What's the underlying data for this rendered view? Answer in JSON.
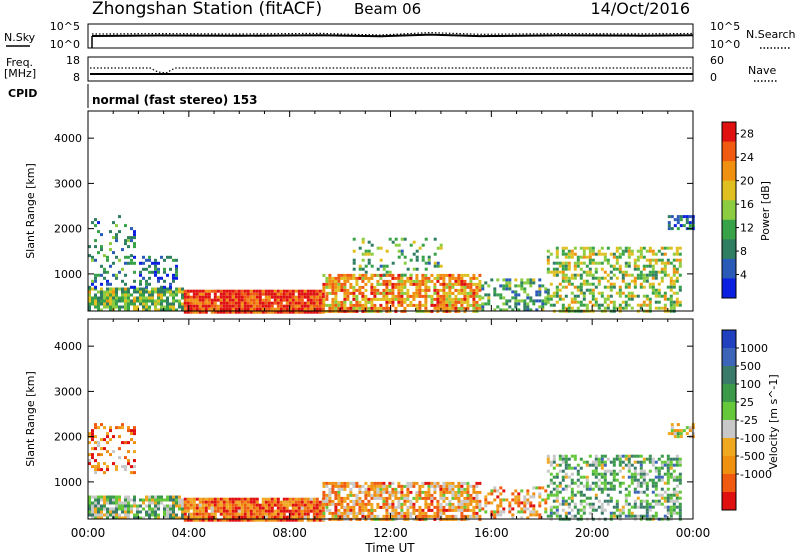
{
  "header": {
    "station": "Zhongshan Station (fitACF)",
    "beam": "Beam 06",
    "date": "14/Oct/2016"
  },
  "noise_panel": {
    "left_label": "N.Sky",
    "right_label": "N.Search",
    "left_ticks": [
      "10^5",
      "10^0"
    ],
    "right_ticks": [
      "10^5",
      "10^0"
    ]
  },
  "freq_panel": {
    "left_label_1": "Freq.",
    "left_label_2": "[MHz]",
    "left_ticks": [
      "18",
      "8"
    ],
    "right_label": "Nave",
    "right_ticks": [
      "60",
      "0"
    ]
  },
  "cpid": {
    "label": "CPID",
    "value": "normal (fast stereo) 153"
  },
  "colors": {
    "power": [
      "#0a1fe0",
      "#2a5ab8",
      "#2f7e62",
      "#38a248",
      "#8ccc40",
      "#e0c020",
      "#f09010",
      "#f05a10",
      "#e01010"
    ],
    "velocity": [
      "#e01010",
      "#f05a10",
      "#f09010",
      "#f0a820",
      "#c8c8c8",
      "#64c83a",
      "#3a9a4a",
      "#3a7a6a",
      "#3c64b8",
      "#2040c0"
    ]
  },
  "chart_data": [
    {
      "type": "heatmap",
      "title": "Power [dB]",
      "xlabel": "Time UT",
      "ylabel": "Slant Range [km]",
      "x_ticks": [
        "00:00",
        "04:00",
        "08:00",
        "12:00",
        "16:00",
        "20:00",
        "00:00"
      ],
      "y_ticks": [
        1000,
        2000,
        3000,
        4000
      ],
      "ylim": [
        180,
        4600
      ],
      "colorbar_label": "Power [dB]",
      "colorbar_ticks": [
        4,
        8,
        12,
        16,
        20,
        24,
        28
      ],
      "colorbar_range": [
        0,
        30
      ],
      "regions": [
        {
          "t": [
            0,
            3.8
          ],
          "r": [
            180,
            700
          ],
          "level": 0.45,
          "density": 0.8
        },
        {
          "t": [
            0,
            3.5
          ],
          "r": [
            700,
            1400
          ],
          "level": 0.25,
          "density": 0.3
        },
        {
          "t": [
            0,
            1.8
          ],
          "r": [
            1400,
            2300
          ],
          "level": 0.3,
          "density": 0.2
        },
        {
          "t": [
            3.8,
            9.3
          ],
          "r": [
            180,
            650
          ],
          "level": 0.9,
          "density": 0.95
        },
        {
          "t": [
            9.3,
            15.6
          ],
          "r": [
            180,
            1000
          ],
          "level": 0.7,
          "density": 0.75
        },
        {
          "t": [
            10.5,
            14.0
          ],
          "r": [
            1000,
            1800
          ],
          "level": 0.4,
          "density": 0.2
        },
        {
          "t": [
            15.6,
            18.2
          ],
          "r": [
            180,
            900
          ],
          "level": 0.35,
          "density": 0.4
        },
        {
          "t": [
            18.2,
            23.5
          ],
          "r": [
            180,
            1600
          ],
          "level": 0.5,
          "density": 0.5
        },
        {
          "t": [
            23.0,
            24.0
          ],
          "r": [
            2000,
            2300
          ],
          "level": 0.2,
          "density": 0.6
        }
      ]
    },
    {
      "type": "heatmap",
      "title": "Velocity [m s^-1]",
      "xlabel": "Time UT",
      "ylabel": "Slant Range [km]",
      "x_ticks": [
        "00:00",
        "04:00",
        "08:00",
        "12:00",
        "16:00",
        "20:00",
        "00:00"
      ],
      "y_ticks": [
        1000,
        2000,
        3000,
        4000
      ],
      "ylim": [
        180,
        4600
      ],
      "colorbar_label": "Velocity [m s^-1]",
      "colorbar_ticks": [
        1000,
        500,
        100,
        25,
        -25,
        -100,
        -500,
        -1000
      ],
      "regions": [
        {
          "t": [
            0,
            3.8
          ],
          "r": [
            180,
            700
          ],
          "level": 0.55,
          "density": 0.8
        },
        {
          "t": [
            0,
            1.8
          ],
          "r": [
            1200,
            2300
          ],
          "level": 0.2,
          "density": 0.25
        },
        {
          "t": [
            3.8,
            9.3
          ],
          "r": [
            180,
            650
          ],
          "level": 0.2,
          "density": 0.95
        },
        {
          "t": [
            9.3,
            15.6
          ],
          "r": [
            180,
            1000
          ],
          "level": 0.3,
          "density": 0.75
        },
        {
          "t": [
            15.6,
            18.2
          ],
          "r": [
            180,
            900
          ],
          "level": 0.3,
          "density": 0.4
        },
        {
          "t": [
            18.2,
            23.5
          ],
          "r": [
            180,
            1600
          ],
          "level": 0.6,
          "density": 0.5
        },
        {
          "t": [
            23.0,
            24.0
          ],
          "r": [
            2000,
            2300
          ],
          "level": 0.45,
          "density": 0.6
        }
      ]
    }
  ]
}
